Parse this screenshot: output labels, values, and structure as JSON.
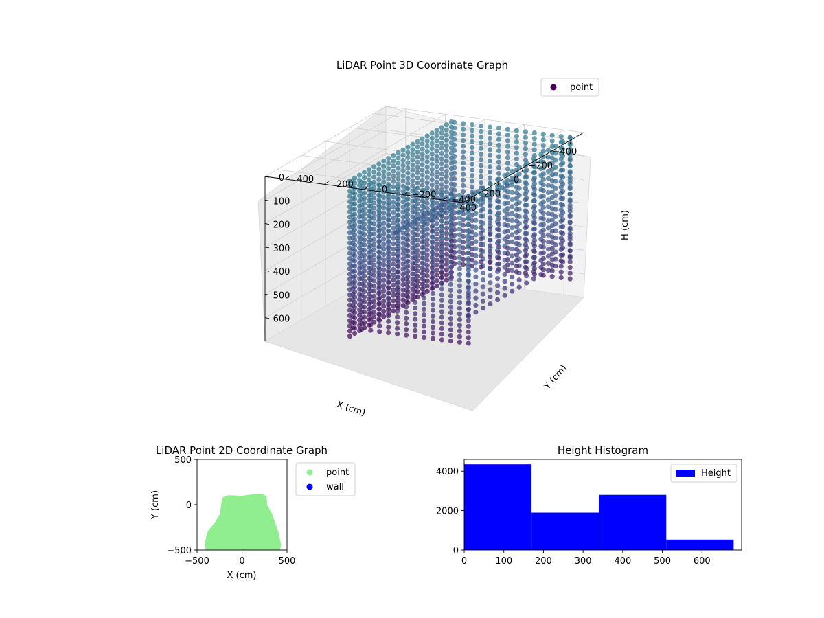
{
  "chart_data": [
    {
      "type": "scatter",
      "projection": "3d",
      "title": "LiDAR Point 3D Coordinate Graph",
      "xlabel": "X (cm)",
      "ylabel": "Y (cm)",
      "zlabel": "H (cm)",
      "xlim": [
        -500,
        500
      ],
      "ylim": [
        -500,
        500
      ],
      "zlim": [
        0,
        700
      ],
      "z_inverted": true,
      "x_ticks": [
        "−400",
        "−200",
        "0",
        "200",
        "400"
      ],
      "y_ticks": [
        "−400",
        "−200",
        "0",
        "200",
        "400"
      ],
      "z_ticks": [
        "0",
        "100",
        "200",
        "300",
        "400",
        "500",
        "600"
      ],
      "legend": [
        {
          "label": "point",
          "color": "#440154"
        }
      ],
      "legend_position": "upper-right",
      "colormap": "viridis (by height)",
      "grid": true,
      "series": [
        {
          "name": "point",
          "shape": "rectangular room walls sampled by vertical LiDAR scan columns",
          "x_range": [
            -420,
            420
          ],
          "y_range": [
            -480,
            120
          ],
          "h_range": [
            0,
            680
          ]
        }
      ]
    },
    {
      "type": "scatter",
      "title": "LiDAR Point 2D Coordinate Graph",
      "xlabel": "X (cm)",
      "ylabel": "Y (cm)",
      "xlim": [
        -500,
        500
      ],
      "ylim": [
        -500,
        500
      ],
      "x_ticks": [
        "−500",
        "0",
        "500"
      ],
      "y_ticks": [
        "−500",
        "0",
        "500"
      ],
      "legend": [
        {
          "label": "point",
          "color": "#90ee90"
        },
        {
          "label": "wall",
          "color": "#0000ff"
        }
      ],
      "legend_position": "outside-right",
      "series": [
        {
          "name": "point",
          "outline": [
            [
              -400,
              -500
            ],
            [
              -410,
              -420
            ],
            [
              -380,
              -300
            ],
            [
              -300,
              -200
            ],
            [
              -240,
              -100
            ],
            [
              -230,
              0
            ],
            [
              -210,
              80
            ],
            [
              -150,
              100
            ],
            [
              0,
              95
            ],
            [
              120,
              110
            ],
            [
              220,
              115
            ],
            [
              270,
              90
            ],
            [
              275,
              0
            ],
            [
              330,
              -100
            ],
            [
              400,
              -300
            ],
            [
              430,
              -440
            ],
            [
              420,
              -500
            ]
          ]
        },
        {
          "name": "wall",
          "values": []
        }
      ]
    },
    {
      "type": "bar",
      "subtype": "histogram",
      "title": "Height Histogram",
      "xlabel": "",
      "ylabel": "",
      "bin_edges": [
        0,
        170,
        340,
        510,
        680
      ],
      "values": [
        4350,
        1900,
        2800,
        530
      ],
      "xlim": [
        0,
        700
      ],
      "ylim": [
        0,
        4600
      ],
      "x_ticks": [
        "0",
        "100",
        "200",
        "300",
        "400",
        "500",
        "600"
      ],
      "y_ticks": [
        "0",
        "2000",
        "4000"
      ],
      "legend": [
        {
          "label": "Height",
          "color": "#0000ff"
        }
      ],
      "legend_position": "upper-right",
      "bar_color": "#0000ff"
    }
  ]
}
